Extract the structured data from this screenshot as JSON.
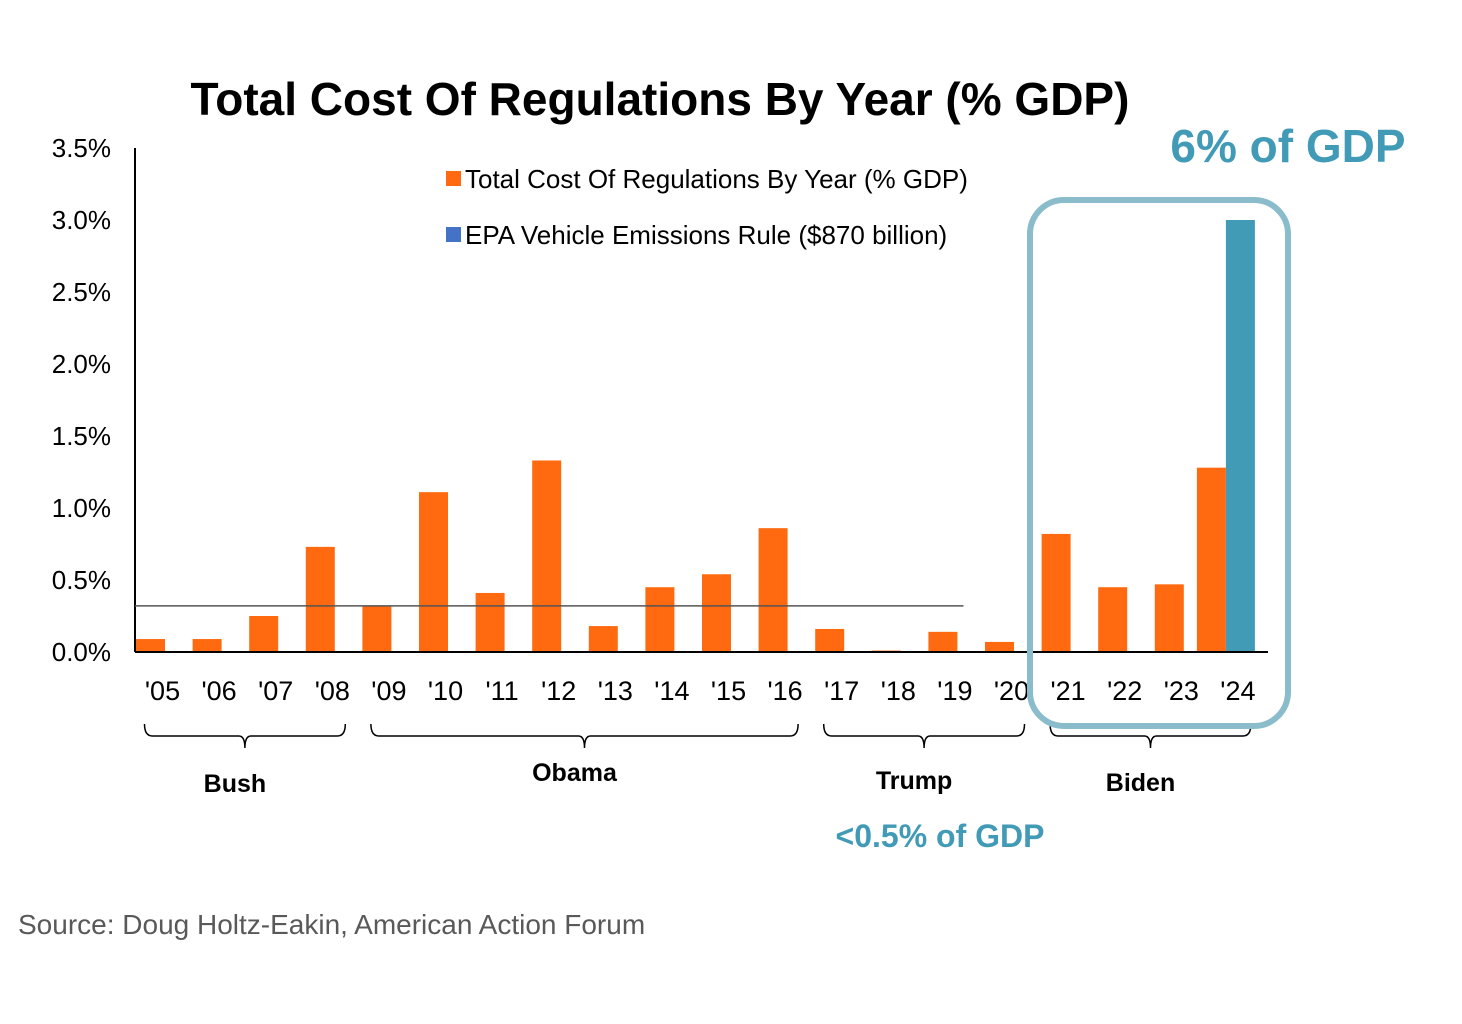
{
  "chart_data": {
    "type": "bar",
    "title": "Total Cost Of Regulations By Year (% GDP)",
    "categories": [
      "'05",
      "'06",
      "'07",
      "'08",
      "'09",
      "'10",
      "'11",
      "'12",
      "'13",
      "'14",
      "'15",
      "'16",
      "'17",
      "'18",
      "'19",
      "'20",
      "'21",
      "'22",
      "'23",
      "'24"
    ],
    "series": [
      {
        "name": "Total Cost Of Regulations By Year (% GDP)",
        "color": "#FF6A10",
        "values": [
          0.09,
          0.09,
          0.25,
          0.73,
          0.32,
          1.11,
          0.41,
          1.33,
          0.18,
          0.45,
          0.54,
          0.86,
          0.16,
          0.01,
          0.14,
          0.07,
          0.82,
          0.45,
          0.47,
          1.28
        ]
      },
      {
        "name": "EPA Vehicle Emissions Rule ($870 billion)",
        "legend_color": "#4472C4",
        "bar_color": "#419AB6",
        "category": "'24",
        "value": 3.0
      }
    ],
    "reference_line": {
      "value": 0.32,
      "from_category": "'05",
      "to_category": "'20"
    },
    "y_ticks": [
      "0.0%",
      "0.5%",
      "1.0%",
      "1.5%",
      "2.0%",
      "2.5%",
      "3.0%",
      "3.5%"
    ],
    "ylim": [
      0,
      3.5
    ],
    "xlabel": "",
    "ylabel": "",
    "legend_position": "top-center",
    "grid": false,
    "groups": [
      {
        "label": "Bush",
        "from": "'05",
        "to": "'08"
      },
      {
        "label": "Obama",
        "from": "'09",
        "to": "'16"
      },
      {
        "label": "Trump",
        "from": "'17",
        "to": "'20"
      },
      {
        "label": "Biden",
        "from": "'21",
        "to": "'24"
      }
    ]
  },
  "annotations": {
    "biden_callout": "6% of GDP",
    "trump_callout": "<0.5% of GDP",
    "callout_color": "#419AB6",
    "highlight_box_color": "#8BBCCC"
  },
  "source": "Source:  Doug Holtz-Eakin, American Action Forum"
}
